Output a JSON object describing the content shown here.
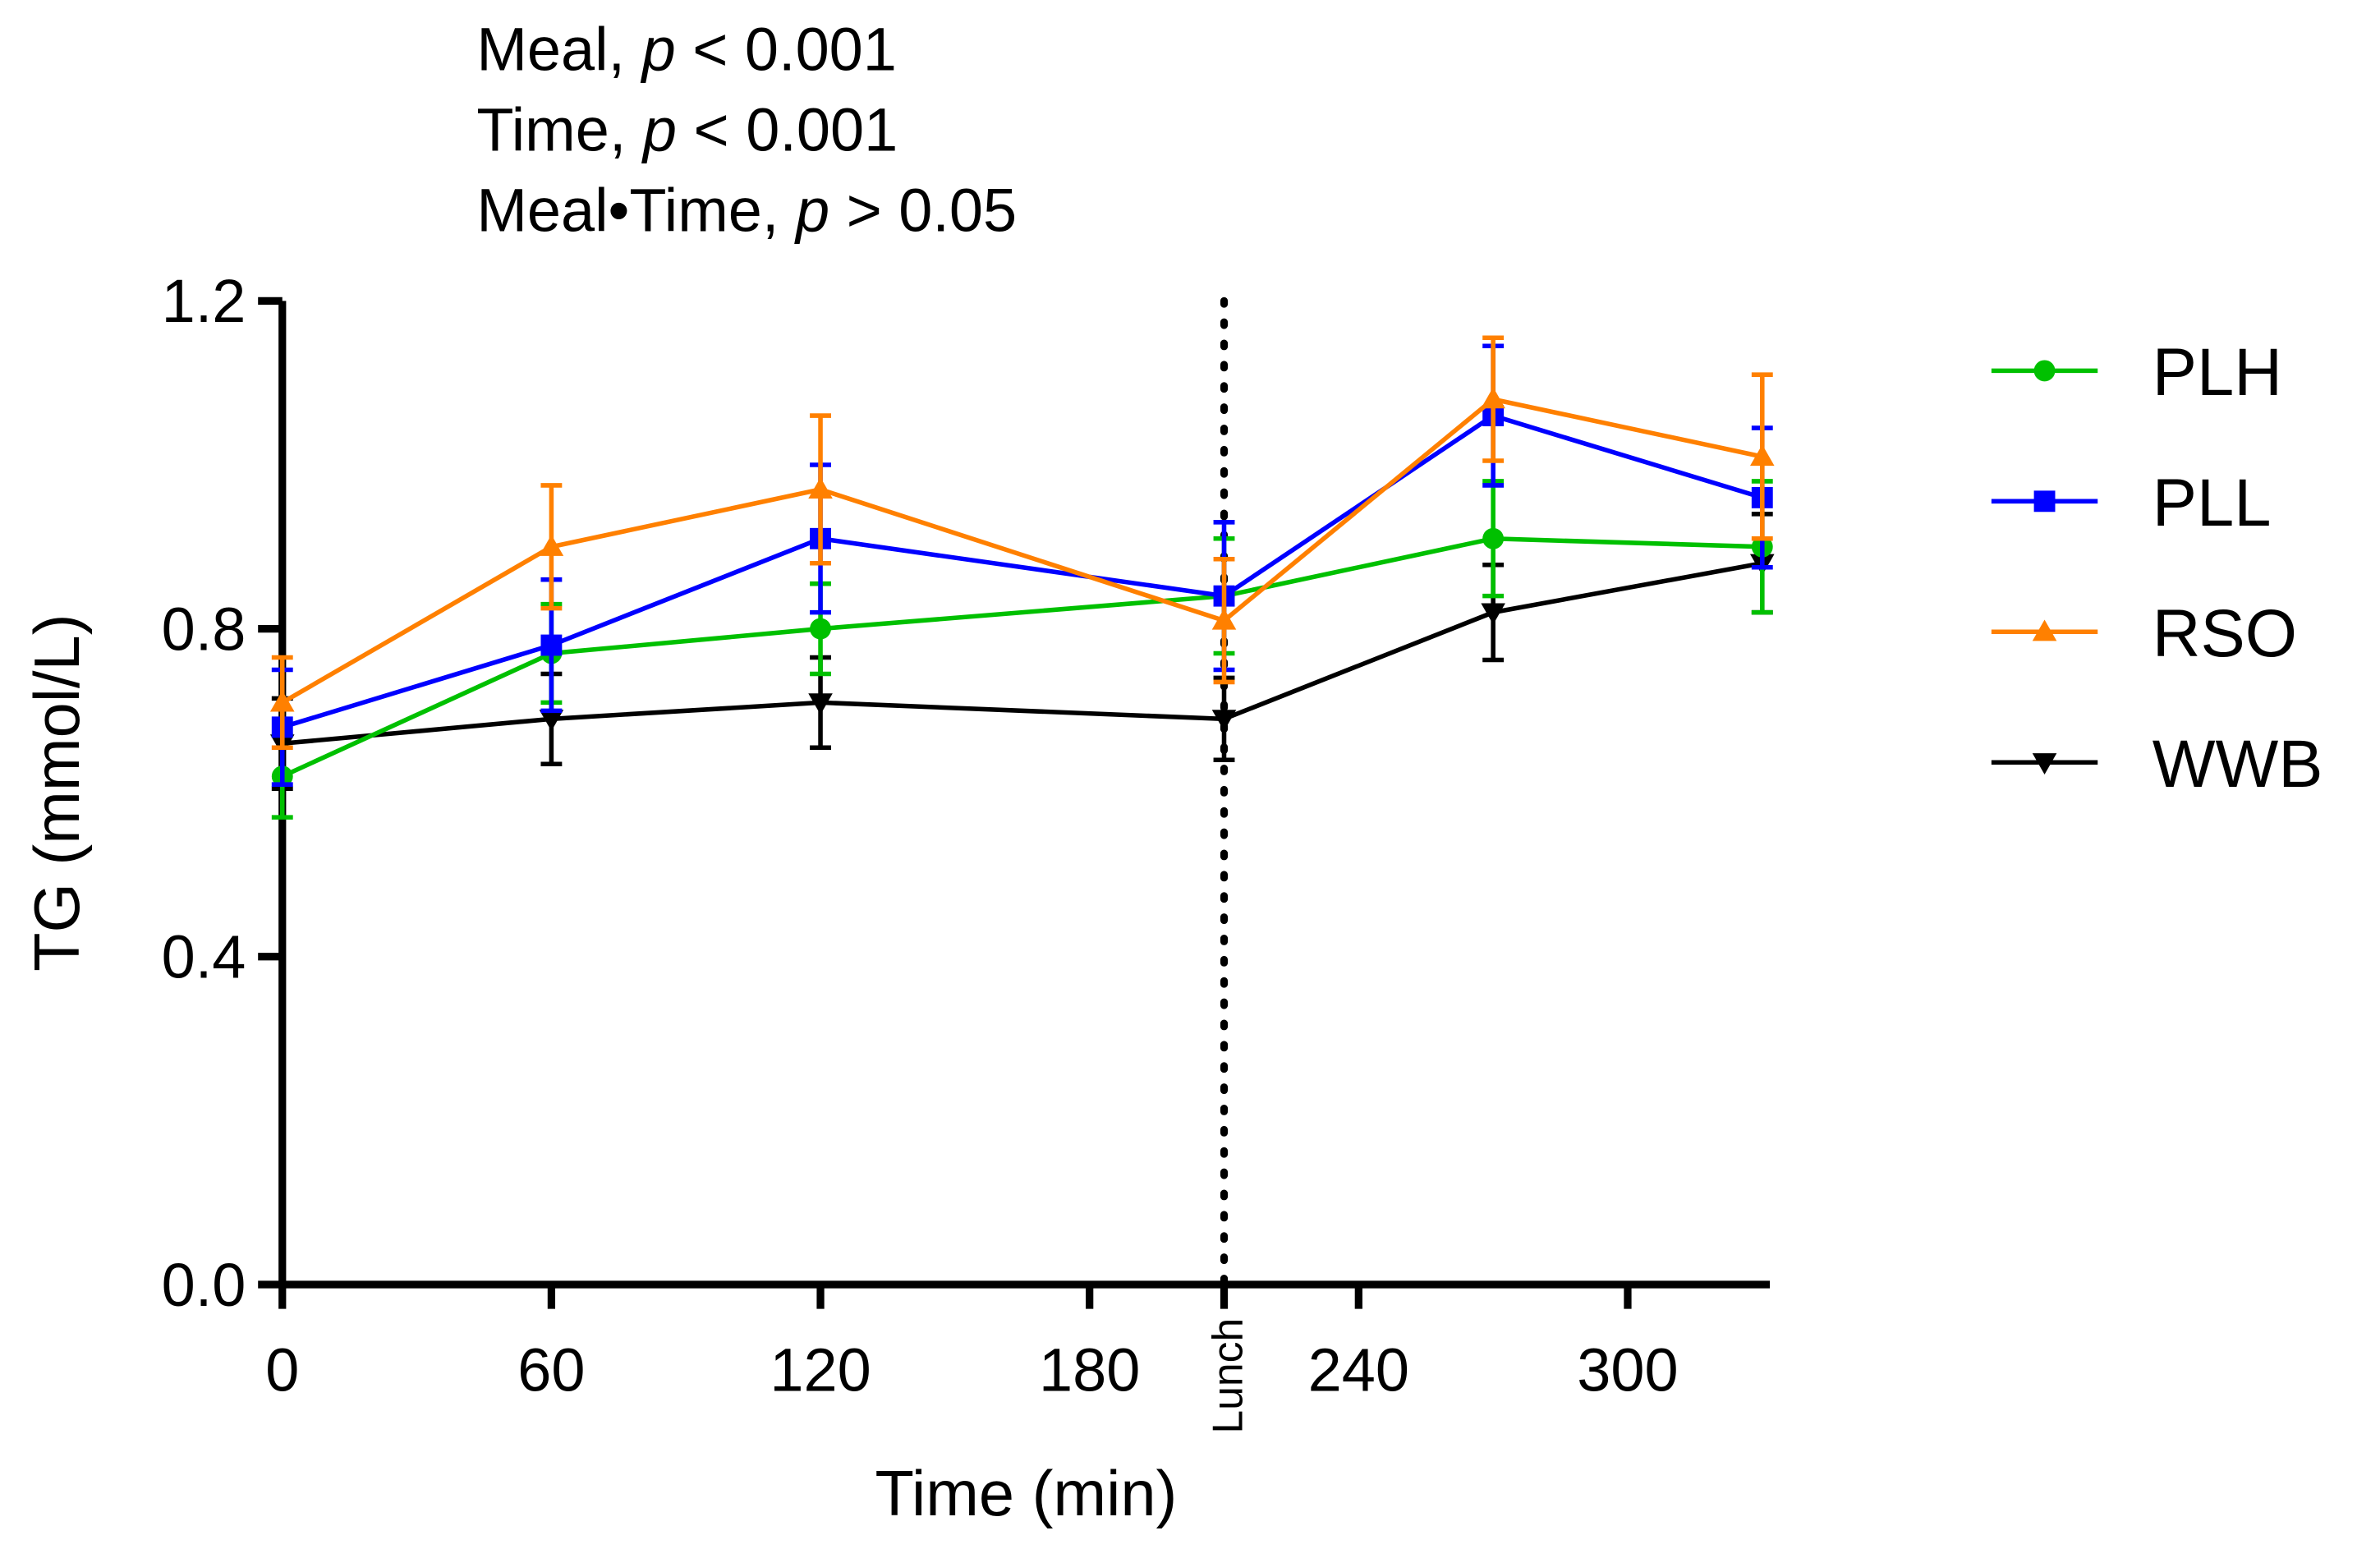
{
  "chart_data": {
    "type": "line",
    "annotations": [
      {
        "prefix": "Meal, ",
        "p": "p",
        "suffix": " < 0.001"
      },
      {
        "prefix": "Time, ",
        "p": "p",
        "suffix": " < 0.001"
      },
      {
        "prefix": "Meal•Time, ",
        "p": "p",
        "suffix": " > 0.05"
      }
    ],
    "xlabel": "Time (min)",
    "ylabel": "TG (mmol/L)",
    "xlim": [
      0,
      330
    ],
    "ylim": [
      0,
      1.2
    ],
    "xticks": [
      0,
      60,
      120,
      180,
      240,
      300
    ],
    "xtick_labels": [
      "0",
      "60",
      "120",
      "180",
      "240",
      "300"
    ],
    "yticks": [
      0,
      0.4,
      0.8,
      1.2
    ],
    "ytick_labels": [
      "0.0",
      "0.4",
      "0.8",
      "1.2"
    ],
    "vline": {
      "x": 210,
      "label": "Lunch",
      "style": "dotted"
    },
    "x": [
      0,
      60,
      120,
      210,
      270,
      330
    ],
    "series": [
      {
        "name": "PLH",
        "color": "#00c000",
        "marker": "circle",
        "values": [
          0.62,
          0.77,
          0.8,
          0.84,
          0.91,
          0.9
        ],
        "error": [
          0.05,
          0.06,
          0.055,
          0.07,
          0.07,
          0.08
        ]
      },
      {
        "name": "PLL",
        "color": "#0000ff",
        "marker": "square",
        "values": [
          0.68,
          0.78,
          0.91,
          0.84,
          1.06,
          0.96
        ],
        "error": [
          0.07,
          0.08,
          0.09,
          0.09,
          0.085,
          0.085
        ]
      },
      {
        "name": "RSO",
        "color": "#ff8000",
        "marker": "triangle-up",
        "values": [
          0.71,
          0.9,
          0.97,
          0.81,
          1.08,
          1.01
        ],
        "error": [
          0.055,
          0.075,
          0.09,
          0.075,
          0.075,
          0.1
        ]
      },
      {
        "name": "WWB",
        "color": "#000000",
        "marker": "triangle-down",
        "values": [
          0.66,
          0.69,
          0.71,
          0.69,
          0.82,
          0.88
        ],
        "error": [
          0.055,
          0.055,
          0.055,
          0.05,
          0.058,
          0.06
        ]
      }
    ],
    "legend": "right"
  }
}
